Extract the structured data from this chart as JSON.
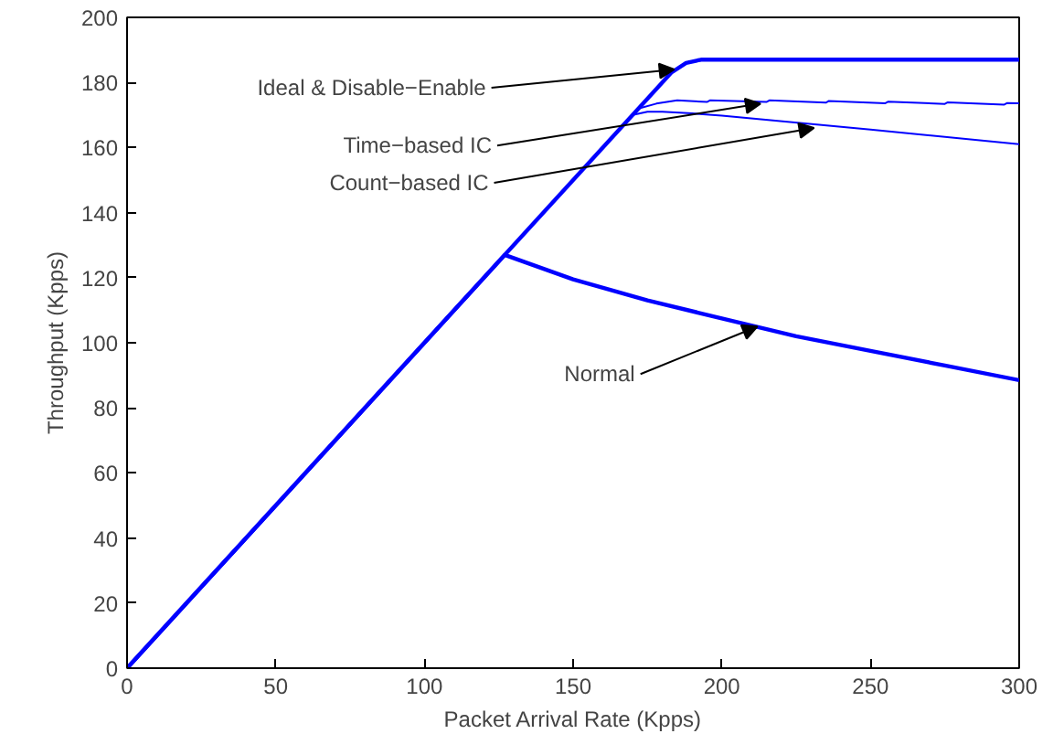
{
  "chart_data": {
    "type": "line",
    "xlabel": "Packet Arrival Rate (Kpps)",
    "ylabel": "Throughput (Kpps)",
    "xlim": [
      0,
      300
    ],
    "ylim": [
      0,
      200
    ],
    "xticks": [
      0,
      50,
      100,
      150,
      200,
      250,
      300
    ],
    "yticks": [
      0,
      20,
      40,
      60,
      80,
      100,
      120,
      140,
      160,
      180,
      200
    ],
    "grid": false,
    "marker": "none",
    "line_style": "solid",
    "series": [
      {
        "color": "#0000ff",
        "x": [
          0,
          183,
          188,
          193,
          200,
          300
        ],
        "values": [
          0,
          183,
          186,
          187,
          187,
          187
        ]
      },
      {
        "color": "#0000ff",
        "x": [
          0,
          172,
          178,
          185,
          195,
          196,
          215,
          216,
          235,
          236,
          255,
          256,
          275,
          276,
          295,
          296,
          300
        ],
        "values": [
          0,
          172,
          173.5,
          174.5,
          174,
          174.5,
          174,
          174.5,
          173.8,
          174.3,
          173.6,
          174.1,
          173.4,
          173.9,
          173.2,
          173.7,
          173.6
        ]
      },
      {
        "color": "#0000ff",
        "x": [
          0,
          170,
          175,
          180,
          190,
          200,
          250,
          300
        ],
        "values": [
          0,
          170,
          171,
          171,
          170.5,
          169.8,
          165.5,
          161
        ]
      },
      {
        "color": "#0000ff",
        "x": [
          0,
          127,
          130,
          150,
          175,
          200,
          225,
          250,
          275,
          300
        ],
        "values": [
          0,
          127,
          126,
          119.5,
          113,
          107.5,
          102,
          97.5,
          93,
          88.5
        ]
      }
    ],
    "annotations": [
      {
        "text": "Ideal & Disable−Enable",
        "x": 184,
        "y": 184
      },
      {
        "text": "Time−based IC",
        "x": 213,
        "y": 173.5
      },
      {
        "text": "Count−based IC",
        "x": 231,
        "y": 166
      },
      {
        "text": "Normal",
        "x": 212,
        "y": 105
      }
    ]
  }
}
